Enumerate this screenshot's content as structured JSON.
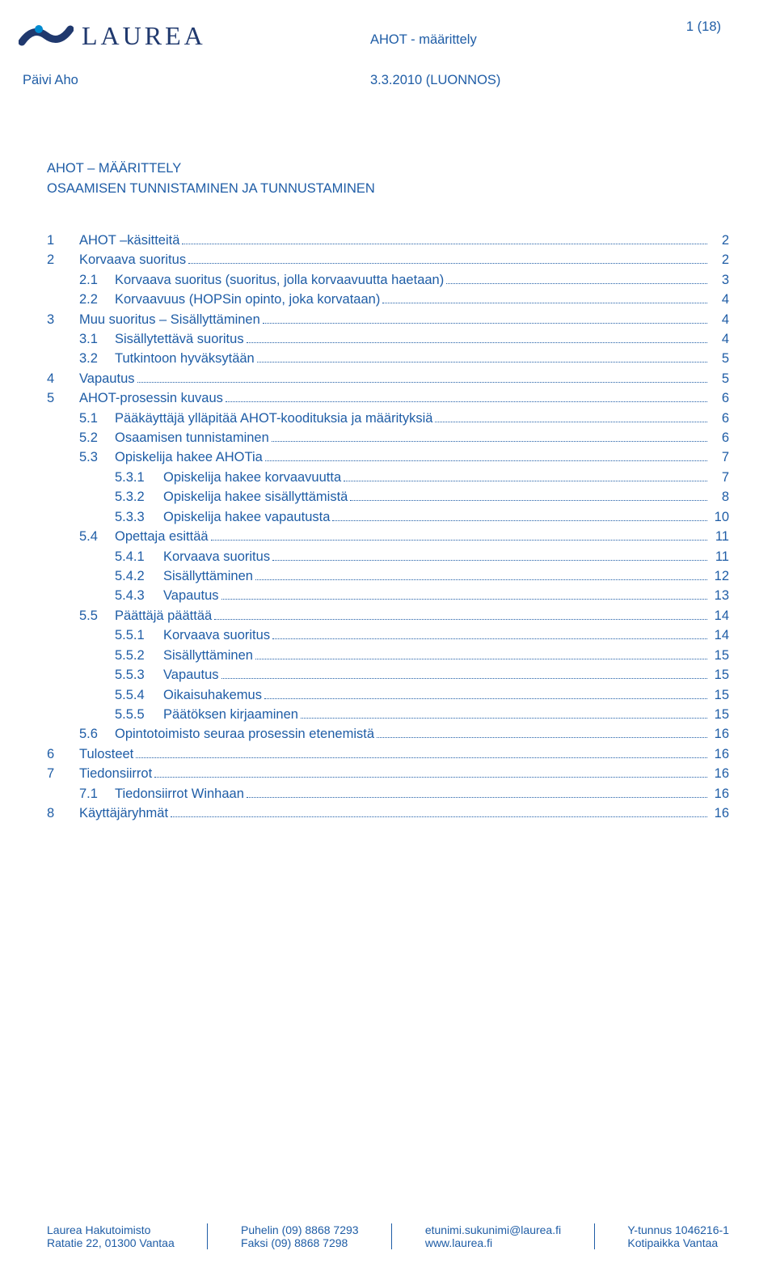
{
  "colors": {
    "text": "#1f5da6",
    "logo_word": "#20396e",
    "logo_accent": "#008bd0",
    "background": "#ffffff",
    "leader": "#1f5da6"
  },
  "typography": {
    "body_family": "Trebuchet MS",
    "body_size_pt": 12,
    "logo_word_family": "Times New Roman",
    "logo_word_size_pt": 24,
    "footer_size_pt": 10
  },
  "header": {
    "brand_word": "LAUREA",
    "center_title": "AHOT - määrittely",
    "page_num": "1 (18)",
    "author": "Päivi Aho",
    "doc_date": "3.3.2010 (LUONNOS)"
  },
  "title1": "AHOT – MÄÄRITTELY",
  "title2": "OSAAMISEN TUNNISTAMINEN JA TUNNUSTAMINEN",
  "toc": [
    {
      "lvl": 1,
      "num": "1",
      "label": "AHOT –käsitteitä",
      "page": "2"
    },
    {
      "lvl": 1,
      "num": "2",
      "label": "Korvaava suoritus",
      "page": "2"
    },
    {
      "lvl": 2,
      "num": "2.1",
      "label": "Korvaava suoritus (suoritus, jolla korvaavuutta haetaan)",
      "page": "3"
    },
    {
      "lvl": 2,
      "num": "2.2",
      "label": "Korvaavuus (HOPSin opinto, joka korvataan)",
      "page": "4"
    },
    {
      "lvl": 1,
      "num": "3",
      "label": "Muu suoritus – Sisällyttäminen",
      "page": "4"
    },
    {
      "lvl": 2,
      "num": "3.1",
      "label": "Sisällytettävä suoritus",
      "page": "4"
    },
    {
      "lvl": 2,
      "num": "3.2",
      "label": "Tutkintoon hyväksytään",
      "page": "5"
    },
    {
      "lvl": 1,
      "num": "4",
      "label": "Vapautus",
      "page": "5"
    },
    {
      "lvl": 1,
      "num": "5",
      "label": "AHOT-prosessin kuvaus",
      "page": "6"
    },
    {
      "lvl": 2,
      "num": "5.1",
      "label": "Pääkäyttäjä ylläpitää AHOT-koodituksia ja määrityksiä",
      "page": "6"
    },
    {
      "lvl": 2,
      "num": "5.2",
      "label": "Osaamisen tunnistaminen",
      "page": "6"
    },
    {
      "lvl": 2,
      "num": "5.3",
      "label": "Opiskelija hakee AHOTia",
      "page": "7"
    },
    {
      "lvl": 3,
      "num": "5.3.1",
      "label": "Opiskelija hakee korvaavuutta",
      "page": "7"
    },
    {
      "lvl": 3,
      "num": "5.3.2",
      "label": "Opiskelija hakee sisällyttämistä",
      "page": "8"
    },
    {
      "lvl": 3,
      "num": "5.3.3",
      "label": "Opiskelija hakee vapautusta",
      "page": "10"
    },
    {
      "lvl": 2,
      "num": "5.4",
      "label": "Opettaja esittää",
      "page": "11"
    },
    {
      "lvl": 3,
      "num": "5.4.1",
      "label": "Korvaava suoritus",
      "page": "11"
    },
    {
      "lvl": 3,
      "num": "5.4.2",
      "label": "Sisällyttäminen",
      "page": "12"
    },
    {
      "lvl": 3,
      "num": "5.4.3",
      "label": "Vapautus",
      "page": "13"
    },
    {
      "lvl": 2,
      "num": "5.5",
      "label": "Päättäjä päättää",
      "page": "14"
    },
    {
      "lvl": 3,
      "num": "5.5.1",
      "label": "Korvaava suoritus",
      "page": "14"
    },
    {
      "lvl": 3,
      "num": "5.5.2",
      "label": "Sisällyttäminen",
      "page": "15"
    },
    {
      "lvl": 3,
      "num": "5.5.3",
      "label": "Vapautus",
      "page": "15"
    },
    {
      "lvl": 3,
      "num": "5.5.4",
      "label": "Oikaisuhakemus",
      "page": "15"
    },
    {
      "lvl": 3,
      "num": "5.5.5",
      "label": "Päätöksen kirjaaminen",
      "page": "15"
    },
    {
      "lvl": 2,
      "num": "5.6",
      "label": "Opintotoimisto seuraa prosessin etenemistä",
      "page": "16"
    },
    {
      "lvl": 1,
      "num": "6",
      "label": "Tulosteet",
      "page": "16"
    },
    {
      "lvl": 1,
      "num": "7",
      "label": "Tiedonsiirrot",
      "page": "16"
    },
    {
      "lvl": 2,
      "num": "7.1",
      "label": "Tiedonsiirrot Winhaan",
      "page": "16"
    },
    {
      "lvl": 1,
      "num": "8",
      "label": "Käyttäjäryhmät",
      "page": "16"
    }
  ],
  "footer": {
    "col1a": "Laurea Hakutoimisto",
    "col1b": "Ratatie 22, 01300 Vantaa",
    "col2a": "Puhelin (09) 8868 7293",
    "col2b": "Faksi    (09) 8868 7298",
    "col3a": "etunimi.sukunimi@laurea.fi",
    "col3b": "www.laurea.fi",
    "col4a": "Y-tunnus 1046216-1",
    "col4b": "Kotipaikka Vantaa"
  }
}
